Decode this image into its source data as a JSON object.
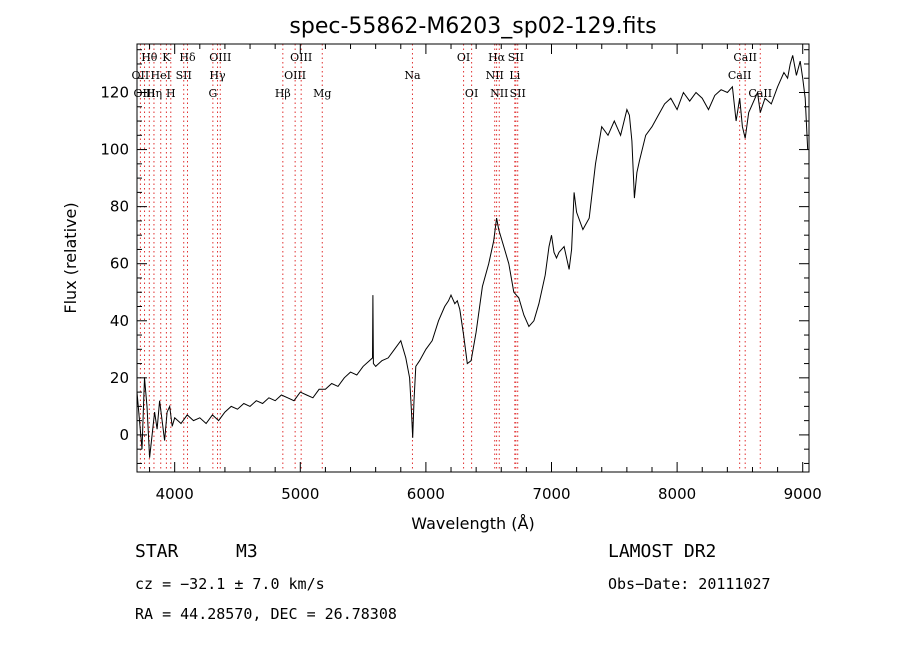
{
  "chart_data": {
    "type": "line",
    "title": "spec-55862-M6203_sp02-129.fits",
    "xlabel": "Wavelength (Å)",
    "ylabel": "Flux (relative)",
    "xlim": [
      3700,
      9050
    ],
    "ylim": [
      -13,
      137
    ],
    "xticks": [
      4000,
      5000,
      6000,
      7000,
      8000,
      9000
    ],
    "yticks": [
      0,
      20,
      40,
      60,
      80,
      100,
      120
    ],
    "series": [
      {
        "name": "spectrum",
        "x": [
          3700,
          3720,
          3740,
          3760,
          3780,
          3800,
          3820,
          3840,
          3860,
          3880,
          3900,
          3920,
          3940,
          3960,
          3980,
          4000,
          4050,
          4100,
          4150,
          4200,
          4250,
          4300,
          4350,
          4400,
          4450,
          4500,
          4550,
          4600,
          4650,
          4700,
          4750,
          4800,
          4850,
          4900,
          4950,
          5000,
          5050,
          5100,
          5150,
          5200,
          5250,
          5300,
          5350,
          5400,
          5450,
          5500,
          5550,
          5575,
          5578,
          5582,
          5600,
          5650,
          5700,
          5750,
          5800,
          5840,
          5870,
          5885,
          5895,
          5905,
          5920,
          5950,
          6000,
          6050,
          6100,
          6150,
          6180,
          6200,
          6230,
          6250,
          6270,
          6300,
          6330,
          6360,
          6400,
          6450,
          6500,
          6540,
          6563,
          6580,
          6620,
          6660,
          6700,
          6740,
          6780,
          6820,
          6860,
          6900,
          6950,
          6980,
          7000,
          7020,
          7040,
          7060,
          7100,
          7120,
          7140,
          7160,
          7180,
          7200,
          7250,
          7300,
          7350,
          7400,
          7450,
          7500,
          7550,
          7600,
          7620,
          7640,
          7660,
          7680,
          7700,
          7750,
          7800,
          7850,
          7900,
          7950,
          8000,
          8050,
          8100,
          8150,
          8200,
          8250,
          8300,
          8350,
          8400,
          8440,
          8470,
          8498,
          8520,
          8542,
          8570,
          8600,
          8640,
          8662,
          8700,
          8750,
          8800,
          8850,
          8880,
          8900,
          8920,
          8950,
          8980,
          9000,
          9020,
          9040
        ],
        "values": [
          15,
          5,
          -5,
          20,
          10,
          -8,
          0,
          8,
          2,
          12,
          5,
          -2,
          8,
          10,
          3,
          6,
          4,
          7,
          5,
          6,
          4,
          7,
          5,
          8,
          10,
          9,
          11,
          10,
          12,
          11,
          13,
          12,
          14,
          13,
          12,
          15,
          14,
          13,
          16,
          16,
          18,
          17,
          20,
          22,
          21,
          24,
          26,
          27,
          49,
          25,
          24,
          26,
          27,
          30,
          33,
          27,
          20,
          8,
          -1,
          12,
          24,
          26,
          30,
          33,
          40,
          45,
          47,
          49,
          46,
          47,
          44,
          35,
          25,
          26,
          36,
          52,
          60,
          68,
          76,
          72,
          66,
          60,
          50,
          48,
          42,
          38,
          40,
          46,
          56,
          66,
          70,
          64,
          62,
          64,
          66,
          62,
          58,
          65,
          85,
          78,
          72,
          76,
          95,
          108,
          105,
          110,
          105,
          114,
          112,
          103,
          83,
          92,
          96,
          105,
          108,
          112,
          116,
          118,
          114,
          120,
          117,
          120,
          118,
          114,
          119,
          121,
          120,
          122,
          110,
          118,
          108,
          104,
          113,
          116,
          120,
          113,
          118,
          116,
          122,
          127,
          125,
          130,
          133,
          126,
          131,
          125,
          118,
          100
        ]
      }
    ],
    "lines": [
      {
        "label": "Hθ",
        "x": 3798,
        "row": 1
      },
      {
        "label": "OII",
        "x": 3727,
        "row": 2
      },
      {
        "label": "OIII",
        "x": 3760,
        "row": 3
      },
      {
        "label": "Hη",
        "x": 3835,
        "row": 3
      },
      {
        "label": "K",
        "x": 3934,
        "row": 1
      },
      {
        "label": "HeI",
        "x": 3889,
        "row": 2
      },
      {
        "label": "H",
        "x": 3969,
        "row": 3
      },
      {
        "label": "Hδ",
        "x": 4102,
        "row": 1
      },
      {
        "label": "SII",
        "x": 4072,
        "row": 2
      },
      {
        "label": "OIII",
        "x": 4363,
        "row": 1
      },
      {
        "label": "Hγ",
        "x": 4341,
        "row": 2
      },
      {
        "label": "G",
        "x": 4304,
        "row": 3
      },
      {
        "label": "Hβ",
        "x": 4861,
        "row": 3
      },
      {
        "label": "OIII",
        "x": 4959,
        "row": 2
      },
      {
        "label": "OIII",
        "x": 5007,
        "row": 1
      },
      {
        "label": "Mg",
        "x": 5175,
        "row": 3
      },
      {
        "label": "Na",
        "x": 5893,
        "row": 2
      },
      {
        "label": "OI",
        "x": 6300,
        "row": 1
      },
      {
        "label": "OI",
        "x": 6364,
        "row": 3
      },
      {
        "label": "Hα",
        "x": 6563,
        "row": 1
      },
      {
        "label": "NII",
        "x": 6548,
        "row": 2
      },
      {
        "label": "NII",
        "x": 6584,
        "row": 3
      },
      {
        "label": "SII",
        "x": 6716,
        "row": 1
      },
      {
        "label": "Li",
        "x": 6708,
        "row": 2
      },
      {
        "label": "SII",
        "x": 6731,
        "row": 3
      },
      {
        "label": "CaII",
        "x": 8542,
        "row": 1
      },
      {
        "label": "CaII",
        "x": 8498,
        "row": 2
      },
      {
        "label": "CaII",
        "x": 8662,
        "row": 3
      }
    ]
  },
  "info": {
    "object_class": "STAR",
    "subclass": "M3",
    "cz": "cz = −32.1 ± 7.0 km/s",
    "survey": "LAMOST DR2",
    "obs_date": "Obs−Date: 20111027",
    "coords": "RA =  44.28570, DEC =  26.78308"
  },
  "colors": {
    "line_marker": "#e03030",
    "spectrum": "#000000"
  }
}
